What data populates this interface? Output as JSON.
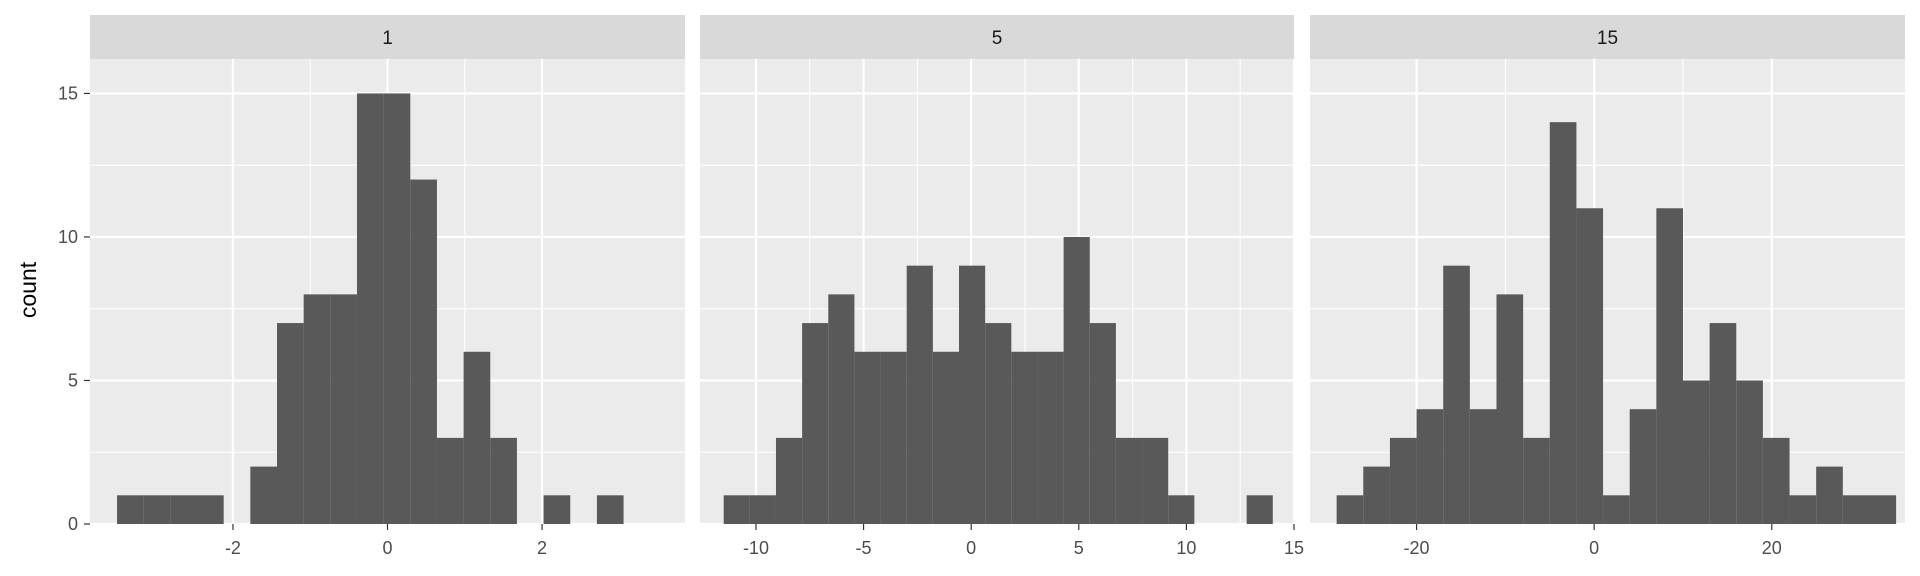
{
  "chart_data": {
    "type": "bar",
    "kind": "faceted histogram",
    "ylabel": "count",
    "xlabel": "",
    "ylim": [
      0,
      16.2
    ],
    "y_ticks": [
      0,
      5,
      10,
      15
    ],
    "y_tick_labels": [
      "0",
      "5",
      "10",
      "15"
    ],
    "grid": true,
    "legend": "none",
    "colors": {
      "bar": "#595959",
      "panel_bg": "#ebebeb",
      "strip_bg": "#d9d9d9",
      "grid": "#ffffff",
      "tick": "#333333"
    },
    "panels": [
      {
        "strip_label": "1",
        "xlim": [
          -3.85,
          3.85
        ],
        "x_ticks": [
          -2,
          0,
          2
        ],
        "x_tick_labels": [
          "-2",
          "0",
          "2"
        ],
        "bin_start": -3.5,
        "bin_width": 0.345,
        "counts": [
          1,
          1,
          1,
          1,
          0,
          2,
          7,
          8,
          8,
          15,
          15,
          12,
          3,
          6,
          3,
          0,
          1,
          0,
          1
        ]
      },
      {
        "strip_label": "5",
        "xlim": [
          -12.6,
          15.0
        ],
        "x_ticks": [
          -10,
          -5,
          0,
          5,
          10,
          15
        ],
        "x_tick_labels": [
          "-10",
          "-5",
          "0",
          "5",
          "10",
          "15"
        ],
        "bin_start": -11.5,
        "bin_width": 1.215,
        "counts": [
          1,
          1,
          3,
          7,
          8,
          6,
          6,
          9,
          6,
          9,
          7,
          6,
          6,
          10,
          7,
          3,
          3,
          1,
          0,
          0,
          1
        ]
      },
      {
        "strip_label": "15",
        "xlim": [
          -32.0,
          35.0
        ],
        "x_ticks": [
          -20,
          0,
          20
        ],
        "x_tick_labels": [
          "-20",
          "0",
          "20"
        ],
        "bin_start": -29.0,
        "bin_width": 3.0,
        "counts": [
          1,
          2,
          3,
          4,
          9,
          4,
          8,
          3,
          14,
          11,
          1,
          4,
          11,
          5,
          7,
          5,
          3,
          1,
          2,
          1,
          1
        ]
      }
    ]
  }
}
